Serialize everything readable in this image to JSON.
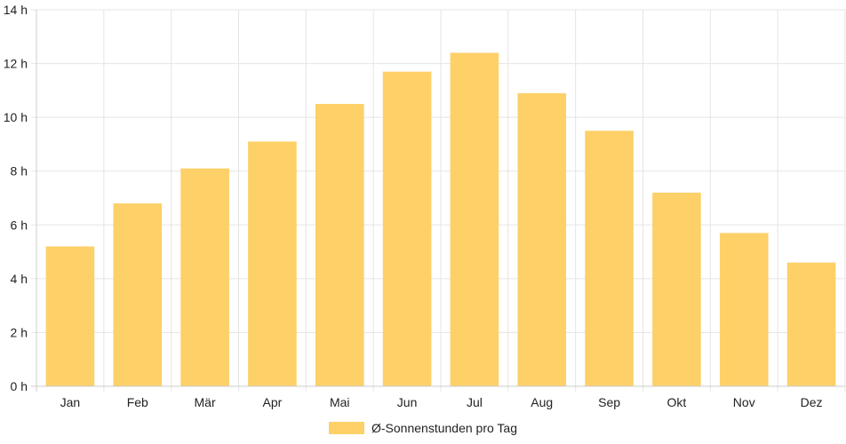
{
  "chart_data": {
    "type": "bar",
    "categories": [
      "Jan",
      "Feb",
      "Mär",
      "Apr",
      "Mai",
      "Jun",
      "Jul",
      "Aug",
      "Sep",
      "Okt",
      "Nov",
      "Dez"
    ],
    "series": [
      {
        "name": "Ø-Sonnenstunden pro Tag",
        "values": [
          5.2,
          6.8,
          8.1,
          9.1,
          10.5,
          11.7,
          12.4,
          10.9,
          9.5,
          7.2,
          5.7,
          4.6
        ]
      }
    ],
    "yticks": [
      "0 h",
      "2 h",
      "4 h",
      "6 h",
      "8 h",
      "10 h",
      "12 h",
      "14 h"
    ],
    "ylim": [
      0,
      14
    ],
    "ystep": 2,
    "grid": true,
    "legend_position": "bottom",
    "colors": {
      "bar": "#fdd068",
      "grid": "#e5e5e5",
      "axis": "#cccccc"
    }
  }
}
